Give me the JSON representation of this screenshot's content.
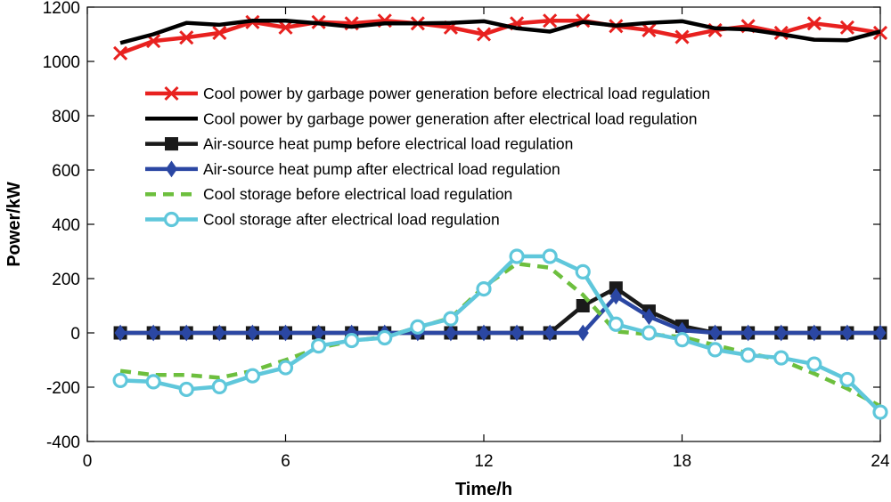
{
  "chart_data": {
    "type": "line",
    "title": "",
    "xlabel": "Time/h",
    "ylabel": "Power/kW",
    "xlim": [
      0,
      24
    ],
    "ylim": [
      -400,
      1200
    ],
    "xticks": [
      0,
      6,
      12,
      18,
      24
    ],
    "yticks": [
      -400,
      -200,
      0,
      200,
      400,
      600,
      800,
      1000,
      1200
    ],
    "grid": false,
    "legend_position": "upper-left inside",
    "x": [
      1,
      2,
      3,
      4,
      5,
      6,
      7,
      8,
      9,
      10,
      11,
      12,
      13,
      14,
      15,
      16,
      17,
      18,
      19,
      20,
      21,
      22,
      23,
      24
    ],
    "series": [
      {
        "name": "Cool power by garbage power generation before electrical load regulation",
        "color": "#e8211f",
        "line_style": "solid",
        "marker": "x",
        "values": [
          1030,
          1075,
          1088,
          1105,
          1145,
          1125,
          1145,
          1140,
          1150,
          1140,
          1125,
          1100,
          1140,
          1150,
          1150,
          1130,
          1115,
          1090,
          1115,
          1130,
          1105,
          1140,
          1125,
          1105
        ]
      },
      {
        "name": "Cool power by garbage power generation after electrical load regulation",
        "color": "#000000",
        "line_style": "solid",
        "marker": "none",
        "values": [
          1068,
          1100,
          1142,
          1135,
          1150,
          1150,
          1140,
          1128,
          1140,
          1140,
          1142,
          1148,
          1122,
          1110,
          1145,
          1132,
          1142,
          1148,
          1122,
          1118,
          1100,
          1080,
          1078,
          1110
        ]
      },
      {
        "name": "Air-source heat pump before electrical load regulation",
        "color": "#1a1a1a",
        "line_style": "solid",
        "marker": "square",
        "values": [
          0,
          0,
          0,
          0,
          0,
          0,
          0,
          0,
          0,
          0,
          0,
          0,
          0,
          0,
          100,
          165,
          80,
          25,
          0,
          0,
          0,
          0,
          0,
          0
        ]
      },
      {
        "name": "Air-source heat pump after electrical load regulation",
        "color": "#2b47a3",
        "line_style": "solid",
        "marker": "diamond",
        "values": [
          0,
          0,
          0,
          0,
          0,
          0,
          0,
          0,
          0,
          0,
          0,
          0,
          0,
          0,
          0,
          135,
          60,
          10,
          0,
          0,
          0,
          0,
          0,
          0
        ]
      },
      {
        "name": "Cool storage before electrical load regulation",
        "color": "#6dbf3e",
        "line_style": "dashed",
        "marker": "none",
        "values": [
          -140,
          -155,
          -155,
          -165,
          -140,
          -100,
          -55,
          -30,
          -15,
          20,
          55,
          170,
          255,
          240,
          140,
          5,
          -5,
          -15,
          -45,
          -75,
          -100,
          -150,
          -205,
          -270
        ]
      },
      {
        "name": "Cool storage after electrical load regulation",
        "color": "#5fc7db",
        "line_style": "solid",
        "marker": "circle",
        "values": [
          -175,
          -180,
          -208,
          -198,
          -158,
          -128,
          -48,
          -28,
          -18,
          22,
          52,
          162,
          282,
          282,
          225,
          32,
          0,
          -25,
          -62,
          -82,
          -92,
          -115,
          -172,
          -292
        ]
      }
    ]
  }
}
